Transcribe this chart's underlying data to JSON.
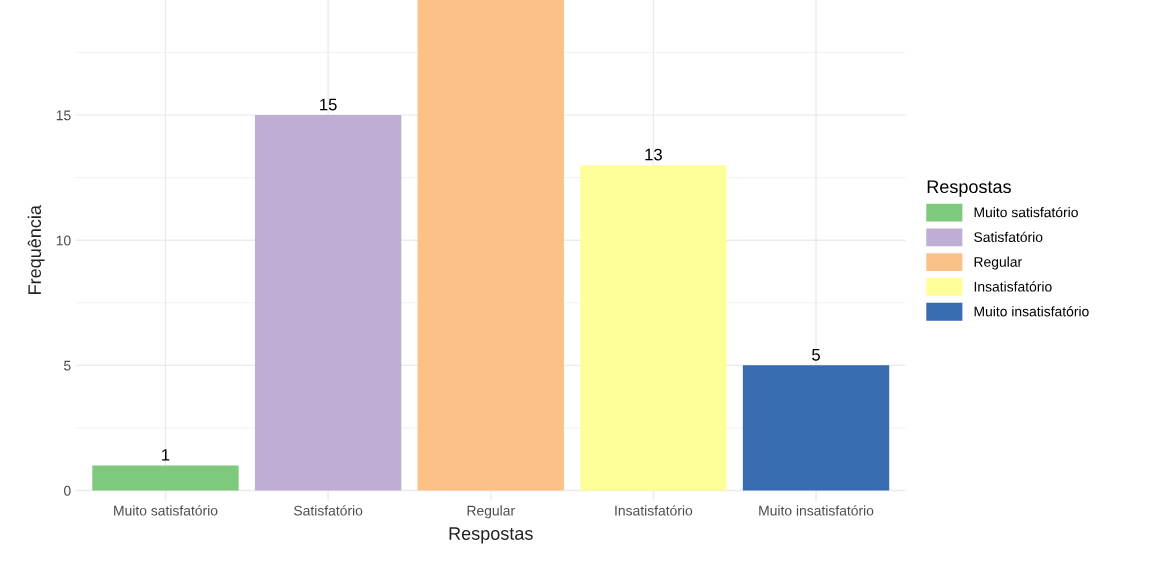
{
  "chart_data": {
    "type": "bar",
    "xlabel": "Respostas",
    "ylabel": "Frequência",
    "legend_title": "Respostas",
    "categories": [
      "Muito satisfatório",
      "Satisfatório",
      "Regular",
      "Insatisfatório",
      "Muito insatisfatório"
    ],
    "series": [
      {
        "name": "Muito satisfatório",
        "color": "#7fc97f",
        "values": [
          1,
          null,
          null,
          null,
          null
        ],
        "value_labels": [
          "1",
          null,
          null,
          null,
          null
        ]
      },
      {
        "name": "Satisfatório",
        "color": "#beaed4",
        "values": [
          null,
          15,
          null,
          null,
          null
        ],
        "value_labels": [
          null,
          "15",
          null,
          null,
          null
        ]
      },
      {
        "name": "Regular",
        "color": "#fdc086",
        "values": [
          null,
          null,
          19.6,
          null,
          null
        ],
        "value_labels": [
          null,
          null,
          null,
          null,
          null
        ]
      },
      {
        "name": "Insatisfatório",
        "color": "#ffff99",
        "values": [
          null,
          null,
          null,
          13,
          null
        ],
        "value_labels": [
          null,
          null,
          null,
          "13",
          null
        ]
      },
      {
        "name": "Muito insatisfatório",
        "color": "#386cb0",
        "values": [
          null,
          null,
          null,
          null,
          5
        ],
        "value_labels": [
          null,
          null,
          null,
          null,
          "5"
        ]
      }
    ],
    "ylim": [
      -0.4,
      19.6
    ],
    "yticks": [
      0,
      5,
      10,
      15
    ],
    "grid": true,
    "legend": "right"
  }
}
